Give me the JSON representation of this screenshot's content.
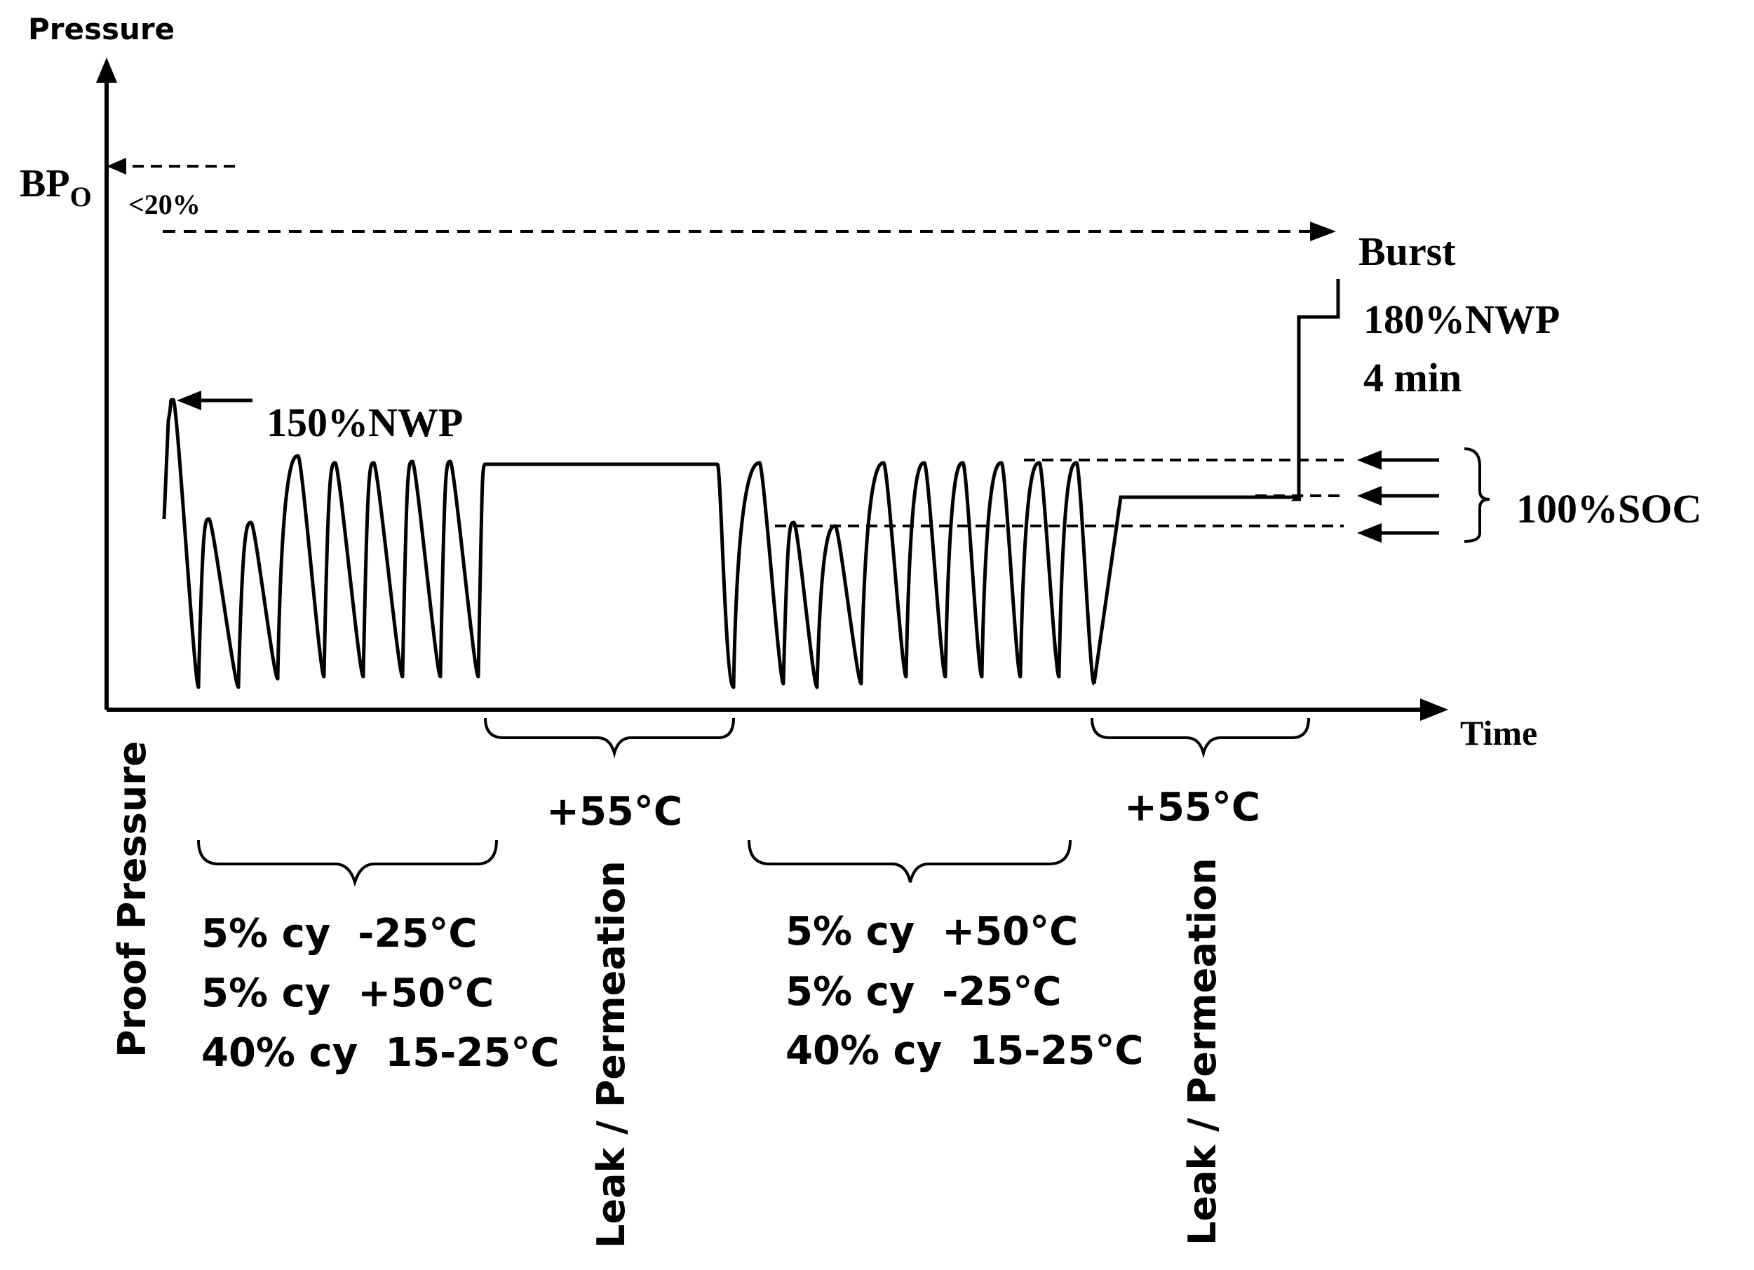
{
  "axes": {
    "y_label": "Pressure",
    "x_label": "Time",
    "bpo_main": "BP",
    "bpo_sub": "O",
    "bpo_tolerance": "<20%"
  },
  "annotations": {
    "burst": "Burst",
    "hold_pressure": "180%NWP",
    "hold_duration": "4 min",
    "proof_peak": "150%NWP",
    "soc": "100%SOC"
  },
  "phases": {
    "proof": "Proof Pressure",
    "group1": [
      "5% cy  -25°C",
      "5% cy  +50°C",
      "40% cy  15-25°C"
    ],
    "hot1": "+55°C",
    "leak1": "Leak / Permeation",
    "group2": [
      "5% cy  +50°C",
      "5% cy  -25°C",
      "40% cy  15-25°C"
    ],
    "hot2": "+55°C",
    "leak2": "Leak / Permeation"
  }
}
